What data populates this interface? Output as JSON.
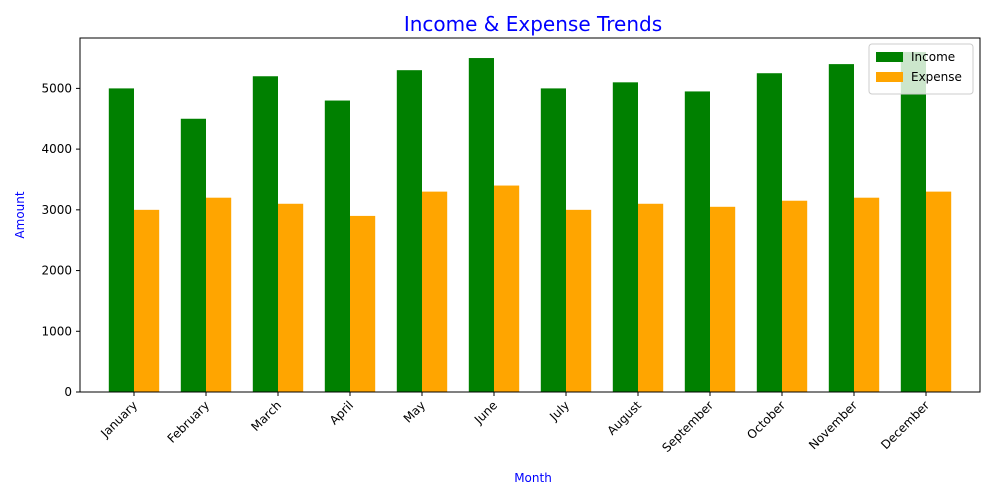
{
  "chart_data": {
    "type": "bar",
    "title": "Income & Expense Trends",
    "xlabel": "Month",
    "ylabel": "Amount",
    "categories": [
      "January",
      "February",
      "March",
      "April",
      "May",
      "June",
      "July",
      "August",
      "September",
      "October",
      "November",
      "December"
    ],
    "series": [
      {
        "name": "Income",
        "color": "#008000",
        "values": [
          5000,
          4500,
          5200,
          4800,
          5300,
          5500,
          5000,
          5100,
          4950,
          5250,
          5400,
          5600
        ]
      },
      {
        "name": "Expense",
        "color": "#FFA500",
        "values": [
          3000,
          3200,
          3100,
          2900,
          3300,
          3400,
          3000,
          3100,
          3050,
          3150,
          3200,
          3300
        ]
      }
    ],
    "yticks": [
      0,
      1000,
      2000,
      3000,
      4000,
      5000
    ],
    "ylim": [
      0,
      5830
    ],
    "legend_position": "top-right",
    "grid": false,
    "title_color": "#0000FF",
    "label_color": "#0000FF"
  }
}
